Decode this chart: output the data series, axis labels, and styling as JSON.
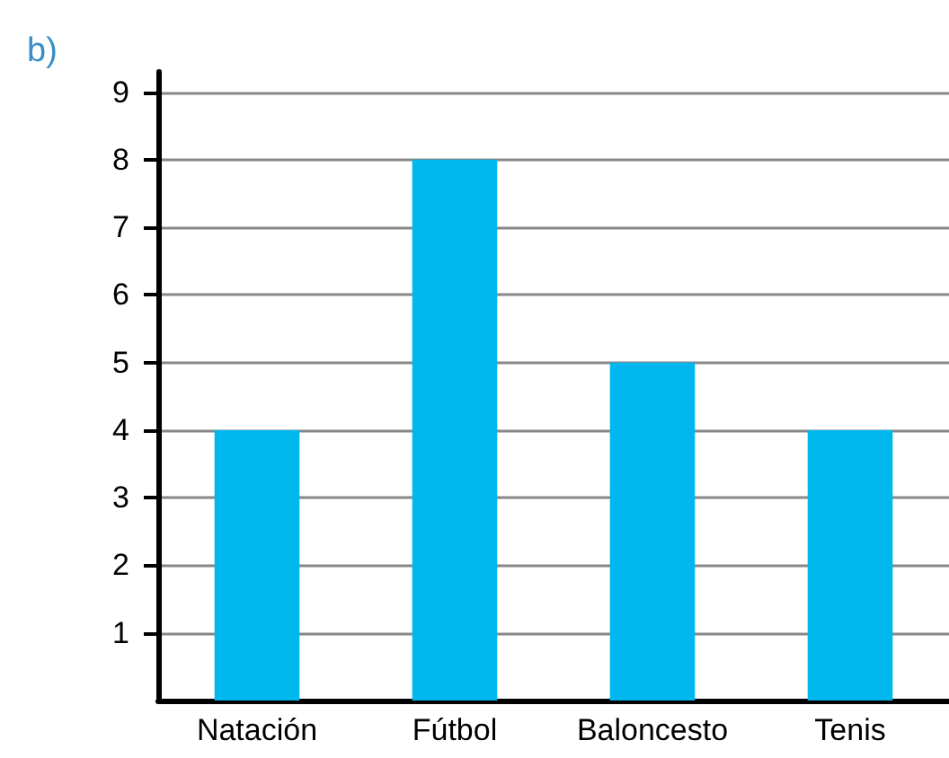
{
  "chart_data": {
    "type": "bar",
    "title": "b)",
    "categories": [
      "Natación",
      "Fútbol",
      "Baloncesto",
      "Tenis"
    ],
    "values": [
      4,
      8,
      5,
      4
    ],
    "color": "#00b8ee",
    "ylim": [
      0,
      9.3
    ],
    "yticks": [
      1,
      2,
      3,
      4,
      5,
      6,
      7,
      8,
      9
    ],
    "grid": "y"
  }
}
